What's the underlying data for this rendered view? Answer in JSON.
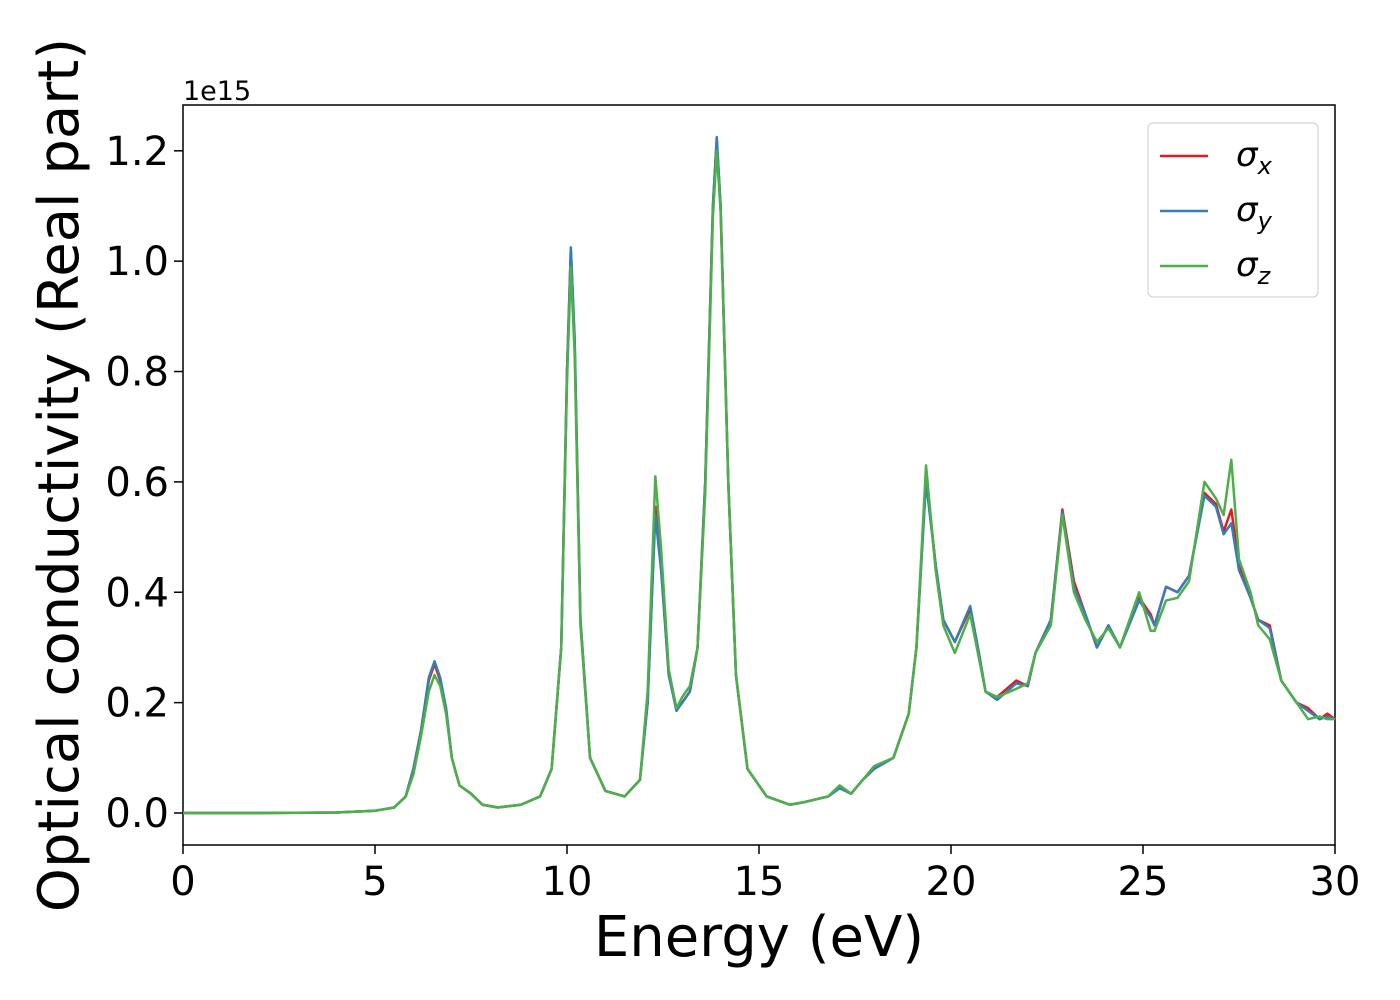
{
  "chart_data": {
    "type": "line",
    "xlabel": "Energy (eV)",
    "ylabel": "Optical conductivity (Real part)",
    "y_offset_label": "1e15",
    "x": [
      0,
      2,
      4,
      5,
      5.5,
      5.8,
      6,
      6.2,
      6.4,
      6.55,
      6.7,
      6.85,
      7,
      7.2,
      7.5,
      7.8,
      8.2,
      8.8,
      9.3,
      9.6,
      9.85,
      10,
      10.1,
      10.2,
      10.35,
      10.6,
      11,
      11.5,
      11.9,
      12.1,
      12.3,
      12.45,
      12.65,
      12.85,
      13,
      13.2,
      13.4,
      13.6,
      13.8,
      13.9,
      14,
      14.2,
      14.4,
      14.7,
      15.2,
      15.8,
      16.2,
      16.5,
      16.8,
      17.1,
      17.4,
      17.7,
      18,
      18.5,
      18.9,
      19.1,
      19.35,
      19.6,
      19.8,
      20.1,
      20.5,
      20.7,
      20.9,
      21.2,
      21.7,
      22,
      22.2,
      22.6,
      22.9,
      23.2,
      23.5,
      23.8,
      24.1,
      24.4,
      24.9,
      25.2,
      25.3,
      25.6,
      25.9,
      26.2,
      26.6,
      26.9,
      27.1,
      27.3,
      27.5,
      27.8,
      28,
      28.3,
      28.6,
      29,
      29.3,
      29.6,
      29.8,
      30
    ],
    "series": [
      {
        "name": "σx",
        "color": "#e41a1c",
        "values": [
          0,
          0,
          0.001,
          0.004,
          0.01,
          0.03,
          0.08,
          0.15,
          0.24,
          0.27,
          0.24,
          0.19,
          0.1,
          0.05,
          0.035,
          0.015,
          0.01,
          0.015,
          0.03,
          0.08,
          0.3,
          0.8,
          1.02,
          0.85,
          0.35,
          0.1,
          0.04,
          0.03,
          0.06,
          0.2,
          0.555,
          0.45,
          0.25,
          0.19,
          0.2,
          0.22,
          0.3,
          0.6,
          1.1,
          1.22,
          1.1,
          0.6,
          0.25,
          0.08,
          0.03,
          0.015,
          0.02,
          0.025,
          0.03,
          0.045,
          0.035,
          0.06,
          0.08,
          0.1,
          0.18,
          0.3,
          0.61,
          0.45,
          0.35,
          0.31,
          0.37,
          0.3,
          0.22,
          0.21,
          0.24,
          0.23,
          0.29,
          0.35,
          0.55,
          0.42,
          0.36,
          0.3,
          0.34,
          0.3,
          0.39,
          0.36,
          0.34,
          0.41,
          0.4,
          0.43,
          0.58,
          0.56,
          0.51,
          0.55,
          0.45,
          0.39,
          0.35,
          0.34,
          0.24,
          0.2,
          0.19,
          0.17,
          0.18,
          0.17
        ]
      },
      {
        "name": "σy",
        "color": "#377eb8",
        "values": [
          0,
          0,
          0.001,
          0.004,
          0.01,
          0.03,
          0.08,
          0.15,
          0.245,
          0.275,
          0.245,
          0.19,
          0.1,
          0.05,
          0.035,
          0.015,
          0.01,
          0.015,
          0.03,
          0.08,
          0.3,
          0.8,
          1.025,
          0.86,
          0.35,
          0.1,
          0.04,
          0.03,
          0.06,
          0.2,
          0.54,
          0.44,
          0.25,
          0.185,
          0.2,
          0.22,
          0.3,
          0.6,
          1.1,
          1.225,
          1.1,
          0.6,
          0.25,
          0.08,
          0.03,
          0.015,
          0.02,
          0.025,
          0.03,
          0.045,
          0.035,
          0.06,
          0.08,
          0.1,
          0.18,
          0.3,
          0.6,
          0.45,
          0.35,
          0.31,
          0.375,
          0.3,
          0.22,
          0.205,
          0.235,
          0.23,
          0.29,
          0.35,
          0.545,
          0.41,
          0.36,
          0.3,
          0.34,
          0.3,
          0.385,
          0.355,
          0.34,
          0.41,
          0.4,
          0.43,
          0.575,
          0.555,
          0.505,
          0.525,
          0.44,
          0.39,
          0.35,
          0.335,
          0.24,
          0.2,
          0.185,
          0.17,
          0.175,
          0.17
        ]
      },
      {
        "name": "σz",
        "color": "#4daf4a",
        "values": [
          0,
          0,
          0.001,
          0.004,
          0.01,
          0.03,
          0.07,
          0.14,
          0.22,
          0.25,
          0.23,
          0.18,
          0.1,
          0.05,
          0.035,
          0.015,
          0.01,
          0.015,
          0.03,
          0.08,
          0.3,
          0.78,
          0.99,
          0.83,
          0.34,
          0.1,
          0.04,
          0.03,
          0.06,
          0.22,
          0.61,
          0.48,
          0.26,
          0.19,
          0.21,
          0.23,
          0.3,
          0.58,
          1.08,
          1.2,
          1.09,
          0.6,
          0.25,
          0.08,
          0.03,
          0.015,
          0.02,
          0.025,
          0.03,
          0.05,
          0.035,
          0.06,
          0.085,
          0.1,
          0.18,
          0.3,
          0.63,
          0.44,
          0.34,
          0.29,
          0.36,
          0.29,
          0.22,
          0.21,
          0.225,
          0.235,
          0.29,
          0.34,
          0.54,
          0.4,
          0.35,
          0.31,
          0.335,
          0.3,
          0.4,
          0.33,
          0.33,
          0.385,
          0.39,
          0.42,
          0.6,
          0.57,
          0.54,
          0.64,
          0.46,
          0.4,
          0.34,
          0.315,
          0.24,
          0.2,
          0.17,
          0.175,
          0.17,
          0.17
        ]
      }
    ],
    "xlim": [
      0,
      30
    ],
    "ylim": [
      -0.058,
      1.283
    ],
    "xticks": [
      0,
      5,
      10,
      15,
      20,
      25,
      30
    ],
    "yticks": [
      {
        "value": 0,
        "label": "0.0"
      },
      0.2,
      0.4,
      0.6,
      0.8,
      {
        "value": 1,
        "label": "1.0"
      },
      1.2
    ],
    "legend": "upper right",
    "grid": false
  }
}
